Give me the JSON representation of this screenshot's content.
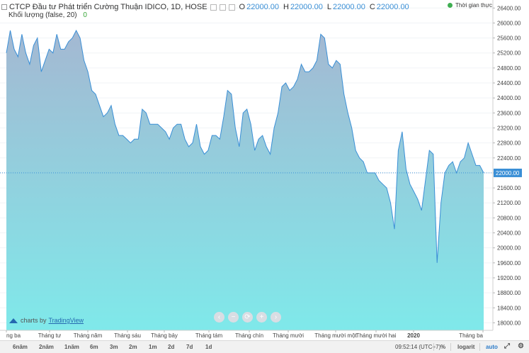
{
  "header": {
    "symbol_title": "CTCP Đầu tư Phát triển Cường Thuận IDICO, 1D, HOSE",
    "ohlc": [
      {
        "label": "O",
        "value": "22000.00"
      },
      {
        "label": "H",
        "value": "22000.00"
      },
      {
        "label": "L",
        "value": "22000.00"
      },
      {
        "label": "C",
        "value": "22000.00"
      }
    ],
    "volume_label": "Khối lượng (false, 20)",
    "volume_value": "0",
    "realtime_label": "Thời gian thực"
  },
  "price_axis": {
    "ticks": [
      "26400.00",
      "26000.00",
      "25600.00",
      "25200.00",
      "24800.00",
      "24400.00",
      "24000.00",
      "23600.00",
      "23200.00",
      "22800.00",
      "22400.00",
      "22000.00",
      "21600.00",
      "21200.00",
      "20800.00",
      "20400.00",
      "20000.00",
      "19600.00",
      "19200.00",
      "18800.00",
      "18400.00",
      "18000.00"
    ],
    "current_price": "22000.00"
  },
  "time_axis": {
    "labels": [
      "ng ba",
      "Tháng tư",
      "Tháng năm",
      "Tháng sáu",
      "Tháng bảy",
      "Tháng tám",
      "Tháng chín",
      "Tháng mười",
      "Tháng mười một",
      "Tháng mười hai",
      "2020",
      "Tháng ba"
    ]
  },
  "bottom_bar": {
    "timeframes": [
      "6năm",
      "2năm",
      "1năm",
      "6m",
      "3m",
      "2m",
      "1m",
      "2d",
      "7d",
      "1d"
    ],
    "time": "09:52:14 (UTC+7)",
    "percent": "%",
    "log": "logarit",
    "auto": "auto"
  },
  "watermark": {
    "prefix": "charts by",
    "brand": "TradingView"
  },
  "colors": {
    "line": "#3a8fd6",
    "fill_top": "#a4b8d2",
    "fill_bottom": "#7fe9ea",
    "volume_up": "#5fbf8c",
    "volume_down": "#9aa6b2",
    "realtime_dot": "#3fae52"
  },
  "chart_data": {
    "type": "area",
    "y_range": [
      17800,
      26500
    ],
    "price_series": [
      25200,
      25800,
      25300,
      25100,
      25700,
      25200,
      24900,
      25400,
      25600,
      24700,
      25000,
      25300,
      25200,
      25700,
      25300,
      25300,
      25500,
      25600,
      25800,
      25600,
      25000,
      24700,
      24200,
      24100,
      23800,
      23500,
      23600,
      23800,
      23300,
      23000,
      23000,
      22900,
      22800,
      22900,
      22900,
      23700,
      23600,
      23300,
      23300,
      23300,
      23200,
      23100,
      22900,
      23200,
      23300,
      23300,
      22900,
      22700,
      22800,
      23300,
      22700,
      22500,
      22600,
      23000,
      23000,
      22900,
      23500,
      24200,
      24100,
      23200,
      22700,
      23600,
      23700,
      23300,
      22600,
      22900,
      23000,
      22700,
      22500,
      23200,
      23600,
      24300,
      24400,
      24200,
      24300,
      24500,
      24900,
      24700,
      24700,
      24800,
      25000,
      25700,
      25600,
      24900,
      24800,
      25000,
      24900,
      24100,
      23600,
      23200,
      22600,
      22400,
      22300,
      22000,
      22000,
      22000,
      21800,
      21700,
      21600,
      21200,
      20500,
      22600,
      23100,
      22100,
      21700,
      21500,
      21300,
      21000,
      21800,
      22600,
      22500,
      19600,
      21200,
      22000,
      22200,
      22300,
      22000,
      22300,
      22400,
      22800,
      22500,
      22200,
      22200,
      22000
    ]
  }
}
